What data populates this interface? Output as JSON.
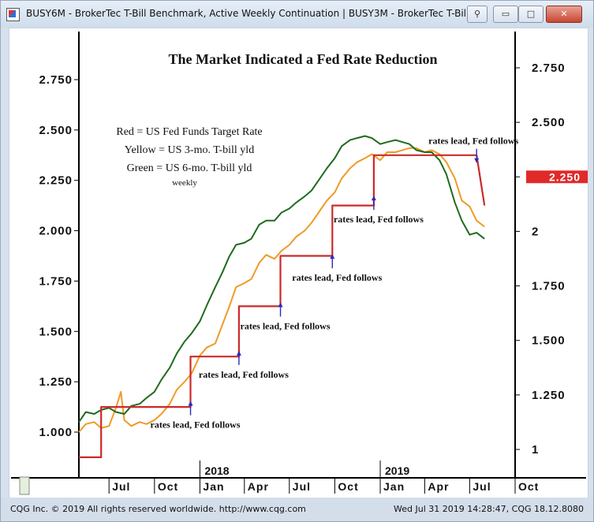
{
  "window": {
    "title": "BUSY6M - BrokerTec T-Bill Benchmark, Active Weekly Continuation   |   BUSY3M - BrokerTec T-Bill ...",
    "colors": {
      "titlebar": "#d7e1ee",
      "close": "#c8462f"
    }
  },
  "chart_data": {
    "type": "line",
    "title": "The Market Indicated a Fed Rate Reduction",
    "legend": [
      "Red = US Fed Funds Target Rate",
      "Yellow = US 3-mo. T-bill yld",
      "Green = US 6-mo. T-bill yld",
      "weekly"
    ],
    "x_tick_labels": [
      "Jul",
      "Oct",
      "Jan",
      "Apr",
      "Jul",
      "Oct",
      "Jan",
      "Apr",
      "Jul",
      "Oct"
    ],
    "year_labels": [
      "2018",
      "2019"
    ],
    "xlim": [
      "2017-05",
      "2019-10"
    ],
    "left_axis": {
      "ticks": [
        "2.750",
        "2.500",
        "2.250",
        "2.000",
        "1.750",
        "1.500",
        "1.250",
        "1.000"
      ],
      "ylim": [
        0.8,
        2.9
      ]
    },
    "right_axis": {
      "ticks": [
        "2.750",
        "2.500",
        "2.250",
        "2",
        "1.750",
        "1.500",
        "1.250",
        "1"
      ],
      "ylim": [
        0.9,
        2.9
      ],
      "last_value": "2.250"
    },
    "grid": false,
    "series": [
      {
        "color": "#cc2a2a",
        "points": [
          [
            "2017-05-01",
            0.875
          ],
          [
            "2017-06-15",
            0.875
          ],
          [
            "2017-06-15",
            1.125
          ],
          [
            "2017-12-13",
            1.125
          ],
          [
            "2017-12-13",
            1.375
          ],
          [
            "2018-03-21",
            1.375
          ],
          [
            "2018-03-21",
            1.625
          ],
          [
            "2018-06-13",
            1.625
          ],
          [
            "2018-06-13",
            1.875
          ],
          [
            "2018-09-26",
            1.875
          ],
          [
            "2018-09-26",
            2.125
          ],
          [
            "2018-12-19",
            2.125
          ],
          [
            "2018-12-19",
            2.375
          ],
          [
            "2019-07-15",
            2.375
          ],
          [
            "2019-07-31",
            2.125
          ]
        ]
      },
      {
        "color": "#f09a27",
        "points": [
          [
            "2017-05-01",
            1.0
          ],
          [
            "2017-05-15",
            1.04
          ],
          [
            "2017-06-01",
            1.05
          ],
          [
            "2017-06-15",
            1.02
          ],
          [
            "2017-07-01",
            1.03
          ],
          [
            "2017-07-15",
            1.12
          ],
          [
            "2017-07-25",
            1.2
          ],
          [
            "2017-08-01",
            1.06
          ],
          [
            "2017-08-15",
            1.03
          ],
          [
            "2017-09-01",
            1.05
          ],
          [
            "2017-09-15",
            1.04
          ],
          [
            "2017-10-01",
            1.06
          ],
          [
            "2017-10-15",
            1.09
          ],
          [
            "2017-11-01",
            1.14
          ],
          [
            "2017-11-15",
            1.21
          ],
          [
            "2017-12-01",
            1.25
          ],
          [
            "2017-12-15",
            1.29
          ],
          [
            "2018-01-01",
            1.38
          ],
          [
            "2018-01-15",
            1.42
          ],
          [
            "2018-02-01",
            1.44
          ],
          [
            "2018-02-15",
            1.53
          ],
          [
            "2018-03-01",
            1.62
          ],
          [
            "2018-03-15",
            1.72
          ],
          [
            "2018-04-01",
            1.74
          ],
          [
            "2018-04-15",
            1.76
          ],
          [
            "2018-05-01",
            1.84
          ],
          [
            "2018-05-15",
            1.88
          ],
          [
            "2018-06-01",
            1.86
          ],
          [
            "2018-06-15",
            1.9
          ],
          [
            "2018-07-01",
            1.93
          ],
          [
            "2018-07-15",
            1.97
          ],
          [
            "2018-08-01",
            2.0
          ],
          [
            "2018-08-15",
            2.04
          ],
          [
            "2018-09-01",
            2.1
          ],
          [
            "2018-09-15",
            2.15
          ],
          [
            "2018-10-01",
            2.19
          ],
          [
            "2018-10-15",
            2.26
          ],
          [
            "2018-11-01",
            2.31
          ],
          [
            "2018-11-15",
            2.34
          ],
          [
            "2018-12-01",
            2.36
          ],
          [
            "2018-12-15",
            2.38
          ],
          [
            "2019-01-01",
            2.35
          ],
          [
            "2019-01-15",
            2.39
          ],
          [
            "2019-02-01",
            2.39
          ],
          [
            "2019-02-15",
            2.4
          ],
          [
            "2019-03-01",
            2.41
          ],
          [
            "2019-03-15",
            2.41
          ],
          [
            "2019-04-01",
            2.39
          ],
          [
            "2019-04-15",
            2.4
          ],
          [
            "2019-05-01",
            2.38
          ],
          [
            "2019-05-15",
            2.34
          ],
          [
            "2019-06-01",
            2.26
          ],
          [
            "2019-06-15",
            2.15
          ],
          [
            "2019-07-01",
            2.12
          ],
          [
            "2019-07-15",
            2.05
          ],
          [
            "2019-07-31",
            2.02
          ]
        ]
      },
      {
        "color": "#1f6b1f",
        "points": [
          [
            "2017-05-01",
            1.05
          ],
          [
            "2017-05-15",
            1.1
          ],
          [
            "2017-06-01",
            1.09
          ],
          [
            "2017-06-15",
            1.11
          ],
          [
            "2017-07-01",
            1.12
          ],
          [
            "2017-07-15",
            1.1
          ],
          [
            "2017-08-01",
            1.09
          ],
          [
            "2017-08-15",
            1.13
          ],
          [
            "2017-09-01",
            1.14
          ],
          [
            "2017-09-15",
            1.17
          ],
          [
            "2017-10-01",
            1.2
          ],
          [
            "2017-10-15",
            1.26
          ],
          [
            "2017-11-01",
            1.32
          ],
          [
            "2017-11-15",
            1.39
          ],
          [
            "2017-12-01",
            1.45
          ],
          [
            "2017-12-15",
            1.49
          ],
          [
            "2018-01-01",
            1.55
          ],
          [
            "2018-01-15",
            1.63
          ],
          [
            "2018-02-01",
            1.72
          ],
          [
            "2018-02-15",
            1.79
          ],
          [
            "2018-03-01",
            1.87
          ],
          [
            "2018-03-15",
            1.93
          ],
          [
            "2018-04-01",
            1.94
          ],
          [
            "2018-04-15",
            1.96
          ],
          [
            "2018-05-01",
            2.03
          ],
          [
            "2018-05-15",
            2.05
          ],
          [
            "2018-06-01",
            2.05
          ],
          [
            "2018-06-15",
            2.09
          ],
          [
            "2018-07-01",
            2.11
          ],
          [
            "2018-07-15",
            2.14
          ],
          [
            "2018-08-01",
            2.17
          ],
          [
            "2018-08-15",
            2.2
          ],
          [
            "2018-09-01",
            2.26
          ],
          [
            "2018-09-15",
            2.31
          ],
          [
            "2018-10-01",
            2.36
          ],
          [
            "2018-10-15",
            2.42
          ],
          [
            "2018-11-01",
            2.45
          ],
          [
            "2018-11-15",
            2.46
          ],
          [
            "2018-12-01",
            2.47
          ],
          [
            "2018-12-15",
            2.46
          ],
          [
            "2019-01-01",
            2.43
          ],
          [
            "2019-01-15",
            2.44
          ],
          [
            "2019-02-01",
            2.45
          ],
          [
            "2019-02-15",
            2.44
          ],
          [
            "2019-03-01",
            2.43
          ],
          [
            "2019-03-15",
            2.4
          ],
          [
            "2019-04-01",
            2.39
          ],
          [
            "2019-04-15",
            2.39
          ],
          [
            "2019-05-01",
            2.35
          ],
          [
            "2019-05-15",
            2.28
          ],
          [
            "2019-06-01",
            2.14
          ],
          [
            "2019-06-15",
            2.05
          ],
          [
            "2019-07-01",
            1.98
          ],
          [
            "2019-07-15",
            1.99
          ],
          [
            "2019-07-31",
            1.96
          ]
        ]
      }
    ],
    "annotations": [
      {
        "text": "rates lead, Fed follows",
        "arrow_date": "2017-12-13",
        "value": 1.06
      },
      {
        "text": "rates lead, Fed follows",
        "arrow_date": "2018-03-21",
        "value": 1.31
      },
      {
        "text": "rates lead, Fed follows",
        "arrow_date": "2018-06-13",
        "value": 1.55
      },
      {
        "text": "rates lead, Fed follows",
        "arrow_date": "2018-09-26",
        "value": 1.79
      },
      {
        "text": "rates lead, Fed follows",
        "arrow_date": "2018-12-19",
        "value": 2.08
      },
      {
        "text": "rates lead, Fed follows",
        "arrow_date": "2019-07-15",
        "value": 2.43
      }
    ]
  },
  "status": {
    "left": "CQG Inc. © 2019 All rights reserved worldwide. http://www.cqg.com",
    "right": "Wed Jul 31 2019 14:28:47, CQG 18.12.8080"
  }
}
